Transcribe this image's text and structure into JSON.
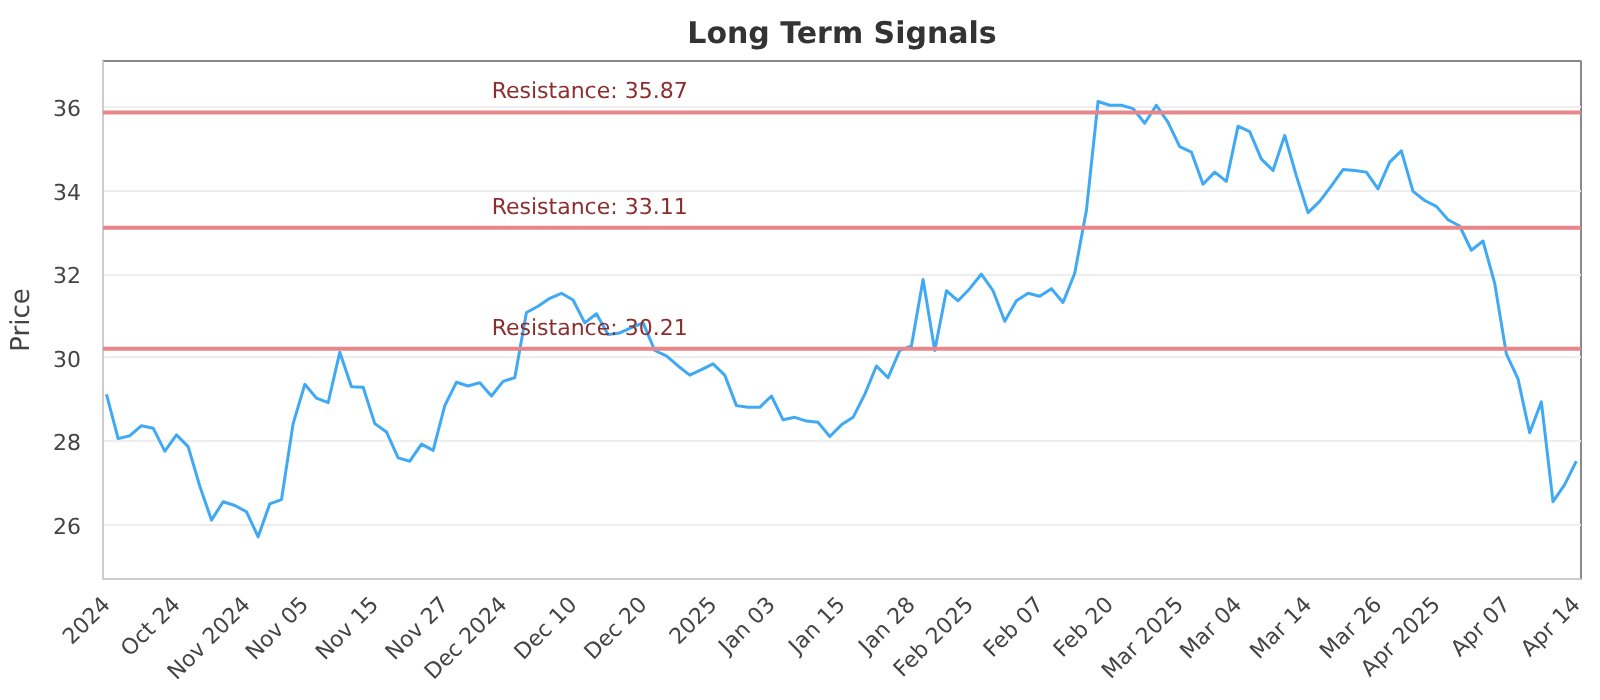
{
  "chart_data": {
    "type": "line",
    "title": "Long Term Signals",
    "ylabel": "Price",
    "categories": [
      "2024",
      null,
      null,
      null,
      null,
      null,
      "Oct 24",
      null,
      null,
      null,
      null,
      null,
      "Nov 2024",
      null,
      null,
      null,
      null,
      "Nov 05",
      null,
      null,
      null,
      null,
      null,
      "Nov 15",
      null,
      null,
      null,
      null,
      null,
      "Nov 27",
      null,
      null,
      null,
      null,
      "Dec 2024",
      null,
      null,
      null,
      null,
      null,
      "Dec 10",
      null,
      null,
      null,
      null,
      null,
      "Dec 20",
      null,
      null,
      null,
      null,
      null,
      "2025",
      null,
      null,
      null,
      null,
      "Jan 03",
      null,
      null,
      null,
      null,
      null,
      "Jan 15",
      null,
      null,
      null,
      null,
      null,
      "Jan 28",
      null,
      null,
      null,
      null,
      "Feb 2025",
      null,
      null,
      null,
      null,
      null,
      "Feb 07",
      null,
      null,
      null,
      null,
      null,
      "Feb 20",
      null,
      null,
      null,
      null,
      null,
      "Mar 2025",
      null,
      null,
      null,
      null,
      "Mar 04",
      null,
      null,
      null,
      null,
      null,
      "Mar 14",
      null,
      null,
      null,
      null,
      null,
      "Mar 26",
      null,
      null,
      null,
      null,
      "Apr 2025",
      null,
      null,
      null,
      null,
      null,
      "Apr 07",
      null,
      null,
      null,
      null,
      null,
      "Apr 14"
    ],
    "series": [
      {
        "color": "#3fa9f5",
        "values": [
          29.12,
          28.06,
          28.13,
          28.37,
          28.31,
          27.76,
          28.15,
          27.87,
          26.92,
          26.11,
          26.55,
          26.46,
          26.31,
          25.71,
          26.5,
          26.6,
          28.42,
          29.36,
          29.03,
          28.92,
          30.13,
          29.3,
          29.29,
          28.42,
          28.22,
          27.6,
          27.52,
          27.93,
          27.78,
          28.85,
          29.41,
          29.32,
          29.4,
          29.08,
          29.43,
          29.52,
          31.08,
          31.23,
          31.42,
          31.54,
          31.38,
          30.83,
          31.05,
          30.55,
          30.59,
          30.72,
          30.83,
          30.17,
          30.04,
          29.8,
          29.58,
          29.71,
          29.85,
          29.58,
          28.85,
          28.81,
          28.81,
          29.08,
          28.51,
          28.57,
          28.48,
          28.45,
          28.11,
          28.39,
          28.57,
          29.12,
          29.8,
          29.52,
          30.17,
          30.28,
          31.87,
          30.17,
          31.6,
          31.36,
          31.65,
          32.0,
          31.6,
          30.87,
          31.36,
          31.54,
          31.47,
          31.65,
          31.32,
          32.02,
          33.52,
          36.13,
          36.04,
          36.04,
          35.96,
          35.61,
          36.04,
          35.63,
          35.05,
          34.92,
          34.15,
          34.44,
          34.22,
          35.54,
          35.41,
          34.75,
          34.48,
          35.32,
          34.35,
          33.47,
          33.74,
          34.11,
          34.5,
          34.48,
          34.44,
          34.04,
          34.68,
          34.95,
          33.98,
          33.76,
          33.62,
          33.3,
          33.15,
          32.57,
          32.79,
          31.78,
          30.09,
          29.49,
          28.2,
          28.94,
          26.55,
          26.96,
          27.52
        ]
      }
    ],
    "ylim": [
      24.7,
      37.1
    ],
    "yticks": [
      26,
      28,
      30,
      32,
      34,
      36
    ],
    "ref_lines": [
      {
        "axis": "y",
        "value": 35.87,
        "label": "Resistance: 35.87",
        "color": "#e8868a"
      },
      {
        "axis": "y",
        "value": 33.11,
        "label": "Resistance: 33.11",
        "color": "#e8868a"
      },
      {
        "axis": "y",
        "value": 30.21,
        "label": "Resistance: 30.21",
        "color": "#e8868a"
      }
    ],
    "grid": "y",
    "line_style": "solid"
  }
}
